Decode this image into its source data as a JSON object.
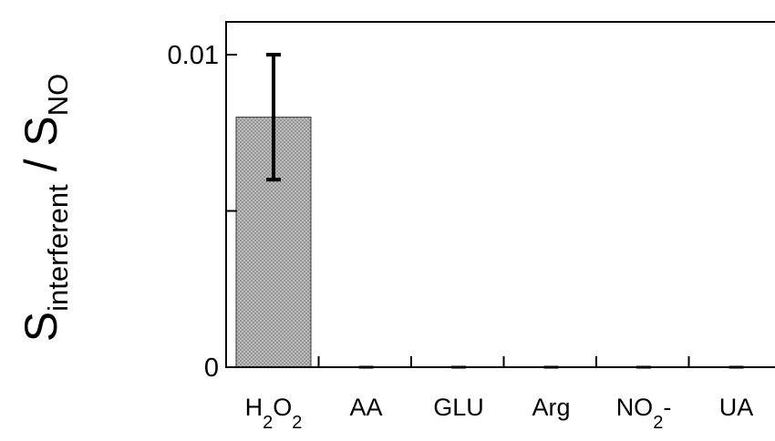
{
  "chart_data": {
    "type": "bar",
    "categories": [
      {
        "base": "H",
        "sub1": "2",
        "mid": "O",
        "sub2": "2",
        "tail": ""
      },
      {
        "base": "AA",
        "sub1": "",
        "mid": "",
        "sub2": "",
        "tail": ""
      },
      {
        "base": "GLU",
        "sub1": "",
        "mid": "",
        "sub2": "",
        "tail": ""
      },
      {
        "base": "Arg",
        "sub1": "",
        "mid": "",
        "sub2": "",
        "tail": ""
      },
      {
        "base": "NO",
        "sub1": "2",
        "mid": "",
        "sub2": "",
        "tail": "-"
      },
      {
        "base": "UA",
        "sub1": "",
        "mid": "",
        "sub2": "",
        "tail": ""
      }
    ],
    "values": [
      0.008,
      0,
      0,
      0,
      0,
      0
    ],
    "error_low": [
      0.006,
      0,
      0,
      0,
      0,
      0
    ],
    "error_high": [
      0.01,
      0,
      0,
      0,
      0,
      0
    ],
    "ylim": [
      0,
      0.01
    ],
    "yticks": [
      {
        "value": 0,
        "label": "0"
      },
      {
        "value": 0.005,
        "label": ""
      },
      {
        "value": 0.01,
        "label": "0.01"
      }
    ],
    "ylabel": {
      "s1": "S",
      "s1_sub": "interferent",
      "slash": " / ",
      "s2": "S",
      "s2_sub": "NO"
    },
    "title": "",
    "xlabel": "",
    "grid": false,
    "bar_fill": "#c8c8c8",
    "bar_hatch": "#8a8a8a",
    "axis_color": "#000000"
  }
}
